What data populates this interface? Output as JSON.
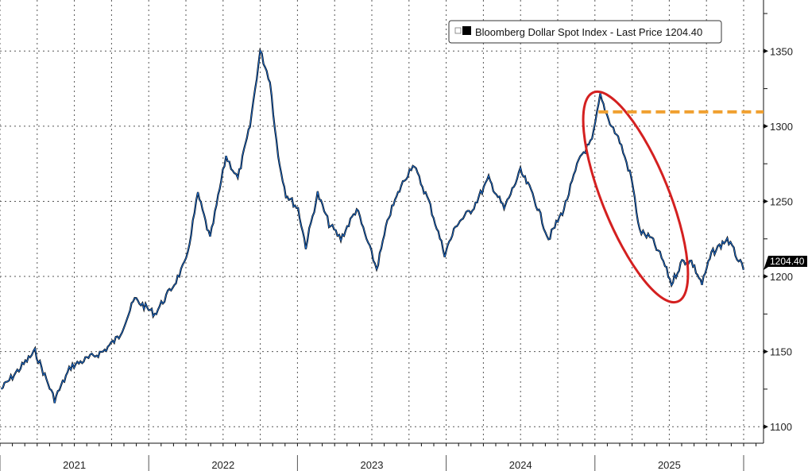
{
  "chart_data": {
    "type": "line",
    "title": "",
    "xlabel": "",
    "ylabel": "",
    "ylim": [
      1089,
      1384
    ],
    "xlim": [
      "2021-01-01",
      "2026-02-20"
    ],
    "grid": true,
    "legend_position": "top-right",
    "y_axis_side": "right",
    "y_ticks": [
      1100,
      1150,
      1200,
      1250,
      1300,
      1350
    ],
    "x_tick_labels": [
      "2021",
      "2022",
      "2023",
      "2024",
      "2025"
    ],
    "legend": {
      "label": "Bloomberg Dollar Spot Index - Last Price",
      "last_value": "1204.40"
    },
    "last_price_label": "1204.40",
    "series": [
      {
        "name": "Bloomberg Dollar Spot Index - Last Price",
        "color": "#1f6fd1",
        "x": [
          "2021-01-04",
          "2021-03-28",
          "2021-05-15",
          "2021-06-24",
          "2021-09-11",
          "2021-10-20",
          "2021-11-28",
          "2022-01-16",
          "2022-03-05",
          "2022-04-03",
          "2022-05-02",
          "2022-06-01",
          "2022-07-10",
          "2022-08-08",
          "2022-09-07",
          "2022-10-02",
          "2022-10-26",
          "2022-11-15",
          "2022-12-04",
          "2023-01-03",
          "2023-01-22",
          "2023-02-20",
          "2023-03-20",
          "2023-04-18",
          "2023-05-27",
          "2023-06-20",
          "2023-07-15",
          "2023-08-14",
          "2023-09-13",
          "2023-10-12",
          "2023-11-20",
          "2023-12-29",
          "2024-01-28",
          "2024-03-06",
          "2024-04-15",
          "2024-05-23",
          "2024-07-02",
          "2024-08-01",
          "2024-09-09",
          "2024-10-17",
          "2024-11-26",
          "2024-12-25",
          "2025-01-14",
          "2025-02-03",
          "2025-03-03",
          "2025-04-01",
          "2025-04-21",
          "2025-05-20",
          "2025-06-18",
          "2025-07-08",
          "2025-08-03",
          "2025-08-26",
          "2025-09-21",
          "2025-10-14",
          "2025-11-22",
          "2025-12-12",
          "2026-01-01"
        ],
        "y": [
          1125,
          1150,
          1118,
          1140,
          1150,
          1160,
          1185,
          1175,
          1195,
          1210,
          1255,
          1225,
          1280,
          1265,
          1300,
          1350,
          1330,
          1280,
          1255,
          1245,
          1220,
          1255,
          1235,
          1225,
          1245,
          1225,
          1205,
          1240,
          1260,
          1275,
          1250,
          1215,
          1235,
          1245,
          1265,
          1245,
          1270,
          1255,
          1225,
          1245,
          1280,
          1290,
          1320,
          1305,
          1290,
          1265,
          1230,
          1225,
          1210,
          1195,
          1210,
          1210,
          1195,
          1215,
          1225,
          1215,
          1204.4
        ]
      }
    ],
    "annotations": [
      {
        "type": "ellipse",
        "color": "#d42020",
        "around": [
          "2024-12-01",
          "2025-07-15"
        ]
      },
      {
        "type": "horizontal-dashed-line",
        "color": "#f0a030",
        "value": 1309.5,
        "from": "2025-01-10"
      }
    ]
  }
}
